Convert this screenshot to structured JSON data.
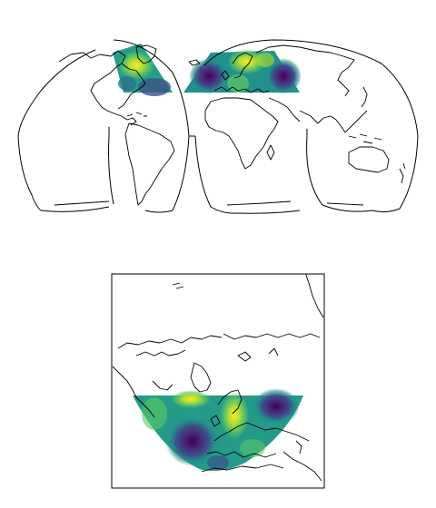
{
  "figure": {
    "colormap": "viridis",
    "palette": [
      "#440154",
      "#472d7b",
      "#3b528b",
      "#2c728e",
      "#21918c",
      "#28ae80",
      "#5ec962",
      "#addc30",
      "#fde725"
    ]
  },
  "maps": [
    {
      "projection": "interrupted-goode-homolosine",
      "coastline_color": "#000000",
      "outline_color": "#000000",
      "data_extent": {
        "lon": [
          -80,
          40
        ],
        "lat": [
          35,
          75
        ]
      }
    },
    {
      "projection": "lambert-conformal",
      "coastline_color": "#000000",
      "frame_color": "#000000",
      "data_extent": {
        "lon": [
          -80,
          40
        ],
        "lat": [
          35,
          75
        ]
      }
    }
  ]
}
